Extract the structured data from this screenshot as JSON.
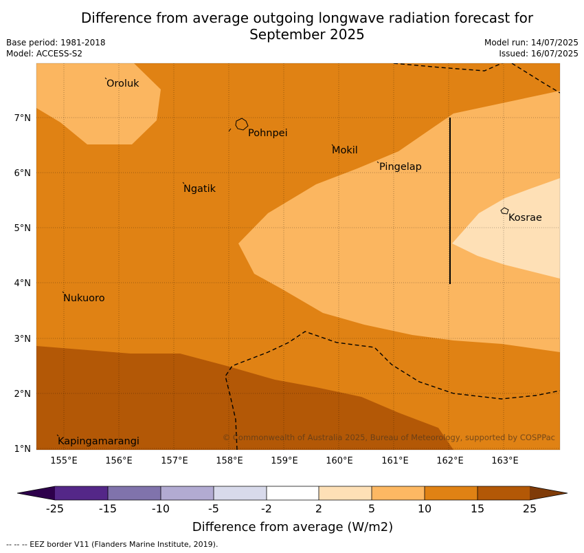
{
  "header": {
    "title_line1": "Difference from average outgoing longwave radiation forecast for",
    "title_line2": "September 2025",
    "base_period": "Base period: 1981-2018",
    "model": "Model: ACCESS-S2",
    "model_run": "Model run: 14/07/2025",
    "issued": "Issued: 16/07/2025"
  },
  "map": {
    "places": [
      "Oroluk",
      "Pohnpei",
      "Mokil",
      "Pingelap",
      "Ngatik",
      "Kosrae",
      "Nukuoro",
      "Kapingamarangi"
    ],
    "lat_labels": [
      "7°N",
      "6°N",
      "5°N",
      "4°N",
      "3°N",
      "2°N",
      "1°N"
    ],
    "lon_labels": [
      "155°E",
      "156°E",
      "157°E",
      "158°E",
      "159°E",
      "160°E",
      "161°E",
      "162°E",
      "163°E"
    ],
    "copyright": "© Commonwealth of Australia 2025, Bureau of Meteorology, supported by COSPPac",
    "band_colors": {
      "c5_10": "#fbb660",
      "c10_15": "#e08214",
      "c15_25": "#b35806",
      "c2_5": "#fee0b6"
    }
  },
  "colorbar": {
    "ticks": [
      "-25",
      "-15",
      "-10",
      "-5",
      "-2",
      "2",
      "5",
      "10",
      "15",
      "25"
    ],
    "colors": [
      "#2d004b",
      "#542788",
      "#8073ac",
      "#b2abd2",
      "#d8daeb",
      "#ffffff",
      "#fee0b6",
      "#fdb863",
      "#e08214",
      "#b35806",
      "#7f3b08"
    ],
    "label": "Difference from average (W/m2)"
  },
  "footnote": "-- -- -- EEZ border V11 (Flanders Marine Institute, 2019)."
}
